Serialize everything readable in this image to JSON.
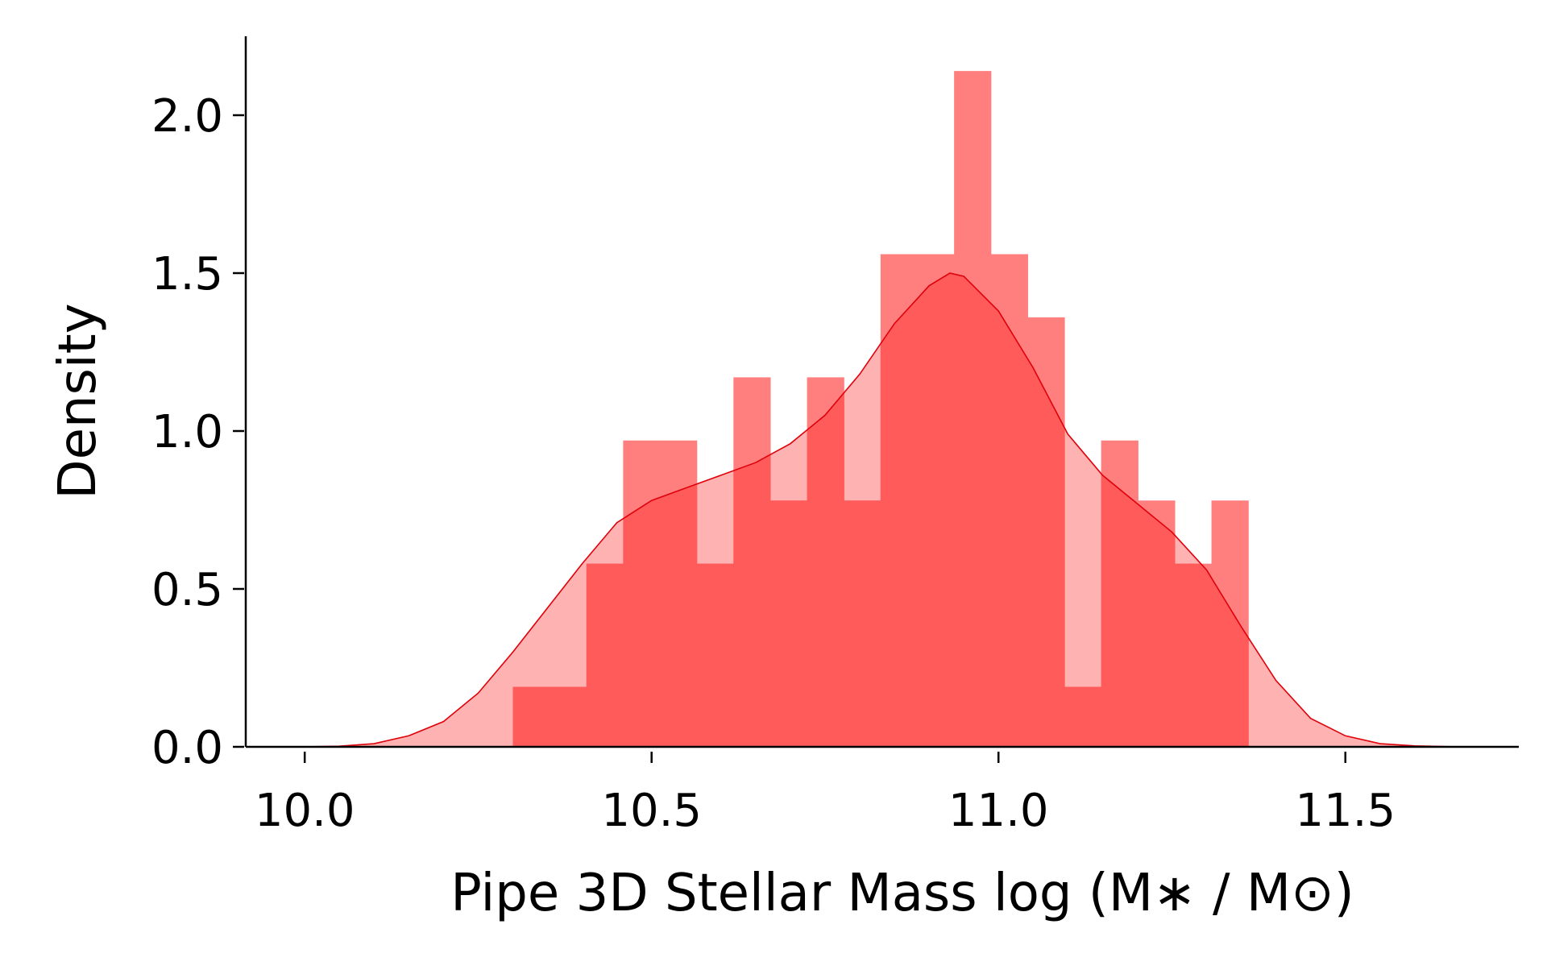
{
  "chart_data": {
    "type": "bar",
    "xlabel": "Pipe 3D Stellar Mass log (M∗ / M⊙)",
    "ylabel": "Density",
    "xlim": [
      9.915,
      11.75
    ],
    "ylim": [
      0,
      2.25
    ],
    "xticks": [
      "10.0",
      "10.5",
      "11.0",
      "11.5"
    ],
    "yticks": [
      "0.0",
      "0.5",
      "1.0",
      "1.5",
      "2.0"
    ],
    "grid": false,
    "legend": "none",
    "colors": {
      "bar": "#ff7f7f",
      "kde_fill": "#ffb2b2",
      "overlap": "#ff5b5b",
      "kde_line": "#e0000a"
    },
    "histogram": {
      "bin_edges": [
        10.3,
        10.353,
        10.406,
        10.459,
        10.512,
        10.565,
        10.618,
        10.671,
        10.724,
        10.777,
        10.83,
        10.883,
        10.936,
        10.989,
        11.042,
        11.095,
        11.148,
        11.201,
        11.254,
        11.307,
        11.36
      ],
      "values": [
        0.19,
        0.19,
        0.58,
        0.97,
        0.97,
        0.58,
        1.17,
        0.78,
        1.17,
        0.78,
        1.56,
        1.56,
        2.14,
        1.56,
        1.36,
        0.19,
        0.97,
        0.78,
        0.58,
        0.78
      ]
    },
    "kde": {
      "x": [
        10.0,
        10.05,
        10.1,
        10.15,
        10.2,
        10.25,
        10.3,
        10.35,
        10.4,
        10.45,
        10.5,
        10.55,
        10.6,
        10.65,
        10.7,
        10.75,
        10.8,
        10.85,
        10.9,
        10.93,
        10.95,
        11.0,
        11.05,
        11.1,
        11.15,
        11.2,
        11.25,
        11.3,
        11.35,
        11.4,
        11.45,
        11.5,
        11.55,
        11.6,
        11.65,
        11.7
      ],
      "y": [
        0.0,
        0.002,
        0.01,
        0.035,
        0.08,
        0.17,
        0.3,
        0.44,
        0.58,
        0.71,
        0.78,
        0.82,
        0.86,
        0.9,
        0.96,
        1.05,
        1.18,
        1.34,
        1.46,
        1.5,
        1.49,
        1.38,
        1.2,
        0.99,
        0.86,
        0.77,
        0.68,
        0.56,
        0.38,
        0.21,
        0.09,
        0.035,
        0.01,
        0.003,
        0.0005,
        0.0
      ]
    }
  }
}
